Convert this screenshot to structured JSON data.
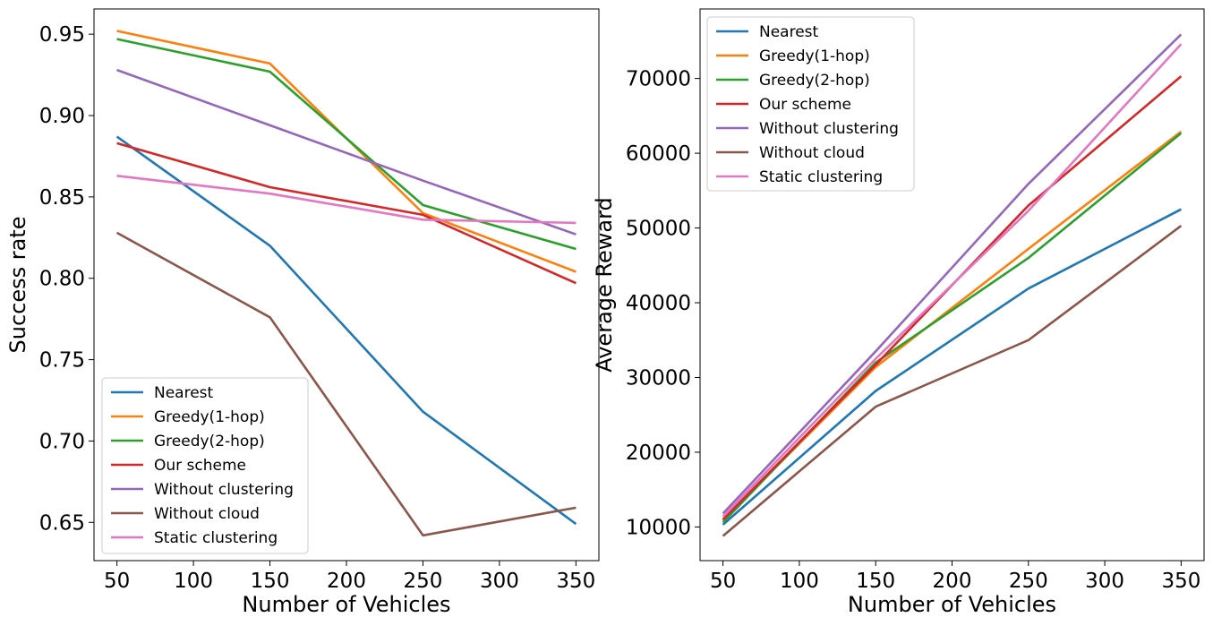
{
  "series_colors": {
    "Nearest": "#1f77b4",
    "Greedy(1-hop)": "#ff7f0e",
    "Greedy(2-hop)": "#2ca02c",
    "Our scheme": "#d62728",
    "Without clustering": "#9467bd",
    "Without cloud": "#8c564b",
    "Static clustering": "#e377c2"
  },
  "chart_data": [
    {
      "type": "line",
      "title": "",
      "xlabel": "Number of Vehicles",
      "ylabel": "Success rate",
      "x": [
        50,
        150,
        250,
        350
      ],
      "xlim": [
        35,
        365
      ],
      "ylim": [
        0.6265,
        0.9655
      ],
      "xticks": [
        "50",
        "100",
        "150",
        "200",
        "250",
        "300",
        "350"
      ],
      "xtick_values": [
        50,
        100,
        150,
        200,
        250,
        300,
        350
      ],
      "yticks": [
        "0.65",
        "0.70",
        "0.75",
        "0.80",
        "0.85",
        "0.90",
        "0.95"
      ],
      "ytick_values": [
        0.65,
        0.7,
        0.75,
        0.8,
        0.85,
        0.9,
        0.95
      ],
      "legend_position": "lower-left",
      "grid": false,
      "series": [
        {
          "name": "Nearest",
          "values": [
            0.887,
            0.82,
            0.718,
            0.649
          ]
        },
        {
          "name": "Greedy(1-hop)",
          "values": [
            0.952,
            0.932,
            0.84,
            0.804
          ]
        },
        {
          "name": "Greedy(2-hop)",
          "values": [
            0.947,
            0.927,
            0.845,
            0.818
          ]
        },
        {
          "name": "Our scheme",
          "values": [
            0.883,
            0.856,
            0.839,
            0.797
          ]
        },
        {
          "name": "Without clustering",
          "values": [
            0.928,
            0.894,
            0.86,
            0.827
          ]
        },
        {
          "name": "Without cloud",
          "values": [
            0.828,
            0.776,
            0.642,
            0.659
          ]
        },
        {
          "name": "Static clustering",
          "values": [
            0.863,
            0.852,
            0.836,
            0.834
          ]
        }
      ]
    },
    {
      "type": "line",
      "title": "",
      "xlabel": "Number of Vehicles",
      "ylabel": "Average Reward",
      "x": [
        50,
        150,
        250,
        350
      ],
      "xlim": [
        35,
        365
      ],
      "ylim": [
        5500,
        79300
      ],
      "xticks": [
        "50",
        "100",
        "150",
        "200",
        "250",
        "300",
        "350"
      ],
      "xtick_values": [
        50,
        100,
        150,
        200,
        250,
        300,
        350
      ],
      "yticks": [
        "10000",
        "20000",
        "30000",
        "40000",
        "50000",
        "60000",
        "70000"
      ],
      "ytick_values": [
        10000,
        20000,
        30000,
        40000,
        50000,
        60000,
        70000
      ],
      "legend_position": "upper-left",
      "grid": false,
      "series": [
        {
          "name": "Nearest",
          "values": [
            10300,
            28200,
            41900,
            52500
          ]
        },
        {
          "name": "Greedy(1-hop)",
          "values": [
            10900,
            31400,
            47200,
            62900
          ]
        },
        {
          "name": "Greedy(2-hop)",
          "values": [
            10600,
            32000,
            46000,
            62700
          ]
        },
        {
          "name": "Our scheme",
          "values": [
            11000,
            31700,
            53000,
            70300
          ]
        },
        {
          "name": "Without clustering",
          "values": [
            11800,
            33500,
            55900,
            75900
          ]
        },
        {
          "name": "Without cloud",
          "values": [
            8800,
            26100,
            35000,
            50300
          ]
        },
        {
          "name": "Static clustering",
          "values": [
            11400,
            32500,
            52300,
            74600
          ]
        }
      ]
    }
  ]
}
